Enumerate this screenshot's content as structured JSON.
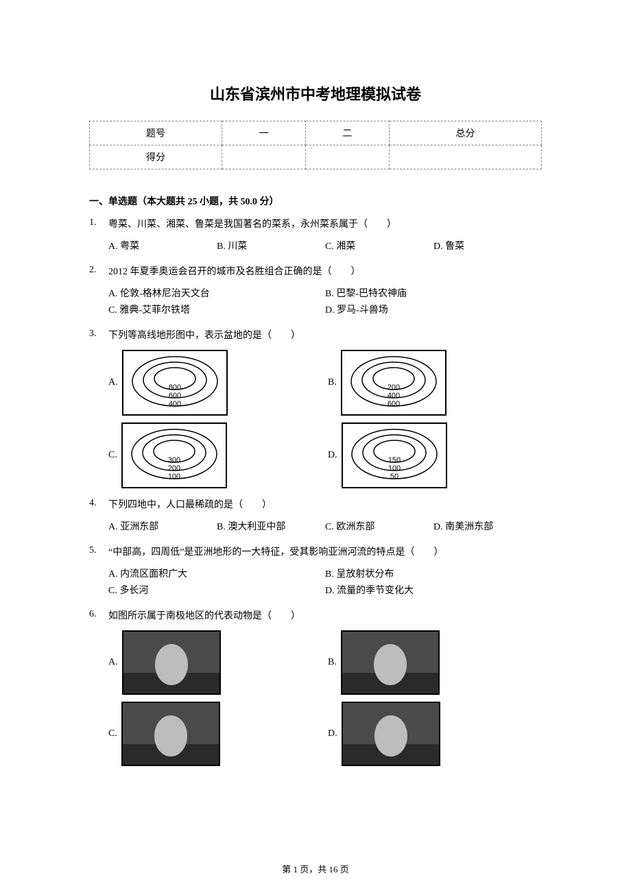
{
  "title": "山东省滨州市中考地理模拟试卷",
  "score_table": {
    "row1": {
      "label": "题号",
      "c1": "一",
      "c2": "二",
      "c3": "总分"
    },
    "row2": {
      "label": "得分",
      "c1": "",
      "c2": "",
      "c3": ""
    }
  },
  "section_header": "一、单选题（本大题共 25 小题，共 50.0 分）",
  "questions": [
    {
      "num": "1.",
      "stem": "粤菜、川菜、湘菜、鲁菜是我国著名的菜系，永州菜系属于（　　）",
      "layout": "row4",
      "opts": [
        {
          "l": "A.",
          "t": "粤菜"
        },
        {
          "l": "B.",
          "t": "川菜"
        },
        {
          "l": "C.",
          "t": "湘菜"
        },
        {
          "l": "D.",
          "t": "鲁菜"
        }
      ]
    },
    {
      "num": "2.",
      "stem": "2012 年夏季奥运会召开的城市及名胜组合正确的是（　　）",
      "layout": "row2",
      "opts": [
        {
          "l": "A.",
          "t": "伦敦-格林尼治天文台"
        },
        {
          "l": "B.",
          "t": "巴黎-巴特农神庙"
        },
        {
          "l": "C.",
          "t": "雅典-艾菲尔铁塔"
        },
        {
          "l": "D.",
          "t": "罗马-斗兽场"
        }
      ]
    },
    {
      "num": "3.",
      "stem": "下列等高线地形图中，表示盆地的是（　　）",
      "layout": "img",
      "img_opts": [
        {
          "l": "A.",
          "labels": [
            "800",
            "600",
            "400"
          ],
          "type": "contour"
        },
        {
          "l": "B.",
          "labels": [
            "200",
            "400",
            "600"
          ],
          "type": "contour"
        },
        {
          "l": "C.",
          "labels": [
            "300",
            "200",
            "100"
          ],
          "type": "contour"
        },
        {
          "l": "D.",
          "labels": [
            "150",
            "100",
            "50"
          ],
          "type": "contour"
        }
      ]
    },
    {
      "num": "4.",
      "stem": "下列四地中，人口最稀疏的是（　　）",
      "layout": "row4",
      "opts": [
        {
          "l": "A.",
          "t": "亚洲东部"
        },
        {
          "l": "B.",
          "t": "澳大利亚中部"
        },
        {
          "l": "C.",
          "t": "欧洲东部"
        },
        {
          "l": "D.",
          "t": "南美洲东部"
        }
      ]
    },
    {
      "num": "5.",
      "stem": "“中部高，四周低”是亚洲地形的一大特征，受其影响亚洲河流的特点是（　　）",
      "layout": "row2",
      "opts": [
        {
          "l": "A.",
          "t": "内流区面积广大"
        },
        {
          "l": "B.",
          "t": "呈放射状分布"
        },
        {
          "l": "C.",
          "t": "多长河"
        },
        {
          "l": "D.",
          "t": "流量的季节变化大"
        }
      ]
    },
    {
      "num": "6.",
      "stem": "如图所示属于南极地区的代表动物是（　　）",
      "layout": "img",
      "img_opts": [
        {
          "l": "A.",
          "name": "kangaroo-image",
          "type": "photo"
        },
        {
          "l": "B.",
          "name": "reindeer-image",
          "type": "photo"
        },
        {
          "l": "C.",
          "name": "arctic-fox-image",
          "type": "photo"
        },
        {
          "l": "D.",
          "name": "penguins-image",
          "type": "photo"
        }
      ]
    }
  ],
  "footer": "第 1 页，共 16 页"
}
